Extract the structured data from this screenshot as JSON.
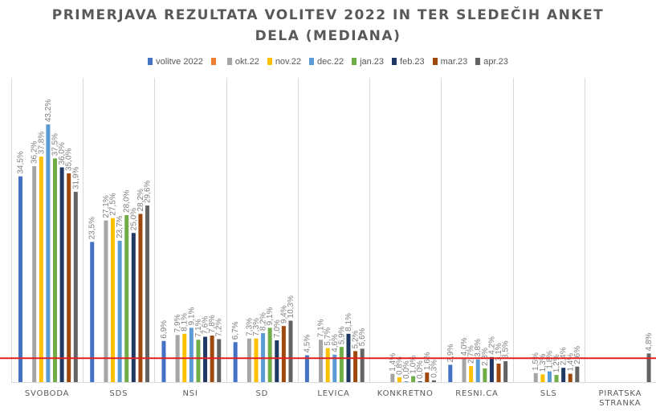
{
  "chart_data": {
    "type": "bar",
    "title_lines": [
      "PRIMERJAVA REZULTATA VOLITEV 2022 IN TER SLEDEČIH ANKET",
      "DELA (MEDIANA)"
    ],
    "xlabel": "",
    "ylabel": "",
    "ylim": [
      0,
      45
    ],
    "grid": "vertical separators between categories",
    "legend_position": "top",
    "reference_line": {
      "value": 4.0,
      "color": "#e02020"
    },
    "categories": [
      [
        "SVOBODA"
      ],
      [
        "SDS"
      ],
      [
        "NSI"
      ],
      [
        "SD"
      ],
      [
        "LEVICA"
      ],
      [
        "KONKRETNO"
      ],
      [
        "RESNI.CA"
      ],
      [
        "SLS"
      ],
      [
        "PIRATSKA",
        "STRANKA"
      ]
    ],
    "series": [
      {
        "name": "volitve 2022",
        "color": "#4472C4",
        "values": [
          34.5,
          23.5,
          6.9,
          6.7,
          4.5,
          null,
          2.9,
          null,
          null
        ],
        "labels": [
          "34,5%",
          "23,5%",
          "6,9%",
          "6,7%",
          "4,5%",
          "",
          "2,9%",
          "",
          ""
        ]
      },
      {
        "name": "",
        "color": "#ED7D31",
        "values": [
          null,
          null,
          null,
          null,
          null,
          null,
          null,
          null,
          null
        ],
        "labels": [
          "",
          "",
          "",
          "",
          "",
          "",
          "",
          "",
          ""
        ]
      },
      {
        "name": "okt.22",
        "color": "#A5A5A5",
        "values": [
          36.2,
          27.1,
          7.9,
          7.3,
          7.1,
          1.4,
          4.0,
          1.5,
          null
        ],
        "labels": [
          "36,2%",
          "27,1%",
          "7,9%",
          "7,3%",
          "7,1%",
          "1,4%",
          "4,0%",
          "1,5%",
          ""
        ]
      },
      {
        "name": "nov.22",
        "color": "#FFC000",
        "values": [
          37.8,
          27.5,
          8.1,
          7.3,
          5.7,
          0.8,
          2.7,
          1.3,
          null
        ],
        "labels": [
          "37,8%",
          "27,5%",
          "8,1%",
          "7,3%",
          "5,7%",
          "0,8%",
          "2,7%",
          "1,3%",
          ""
        ]
      },
      {
        "name": "dec.22",
        "color": "#5B9BD5",
        "values": [
          43.2,
          23.7,
          9.1,
          8.2,
          4.6,
          0.0,
          3.8,
          1.8,
          null
        ],
        "labels": [
          "43,2%",
          "23,7%",
          "9,1%",
          "8,2%",
          "4,6%",
          "0,0%",
          "3,8%",
          "1,8%",
          ""
        ]
      },
      {
        "name": "jan.23",
        "color": "#70AD47",
        "values": [
          37.5,
          28.0,
          7.1,
          9.1,
          5.9,
          1.0,
          2.3,
          1.2,
          null
        ],
        "labels": [
          "37,5%",
          "28,0%",
          "7,1%",
          "9,1%",
          "5,9%",
          "1,0%",
          "2,3%",
          "1,2%",
          ""
        ]
      },
      {
        "name": "feb.23",
        "color": "#1F3864",
        "values": [
          36.0,
          25.0,
          7.6,
          7.0,
          8.1,
          0.0,
          4.2,
          2.4,
          null
        ],
        "labels": [
          "36,0%",
          "25,0%",
          "7,6%",
          "7,0%",
          "8,1%",
          "0,0%",
          "4,2%",
          "2,4%",
          ""
        ]
      },
      {
        "name": "mar.23",
        "color": "#9E480E",
        "values": [
          35.0,
          28.2,
          7.8,
          9.4,
          5.2,
          1.6,
          3.1,
          1.4,
          null
        ],
        "labels": [
          "35,0%",
          "28,2%",
          "7,8%",
          "9,4%",
          "5,2%",
          "1,6%",
          "3,1%",
          "1,4%",
          ""
        ]
      },
      {
        "name": "apr.23",
        "color": "#636363",
        "values": [
          31.9,
          29.6,
          7.2,
          10.3,
          5.6,
          0.3,
          3.5,
          2.6,
          4.8
        ],
        "labels": [
          "31,9%",
          "29,6%",
          "7,2%",
          "10,3%",
          "5,6%",
          "0,3%",
          "3,5%",
          "2,6%",
          "4,8%"
        ]
      }
    ]
  }
}
